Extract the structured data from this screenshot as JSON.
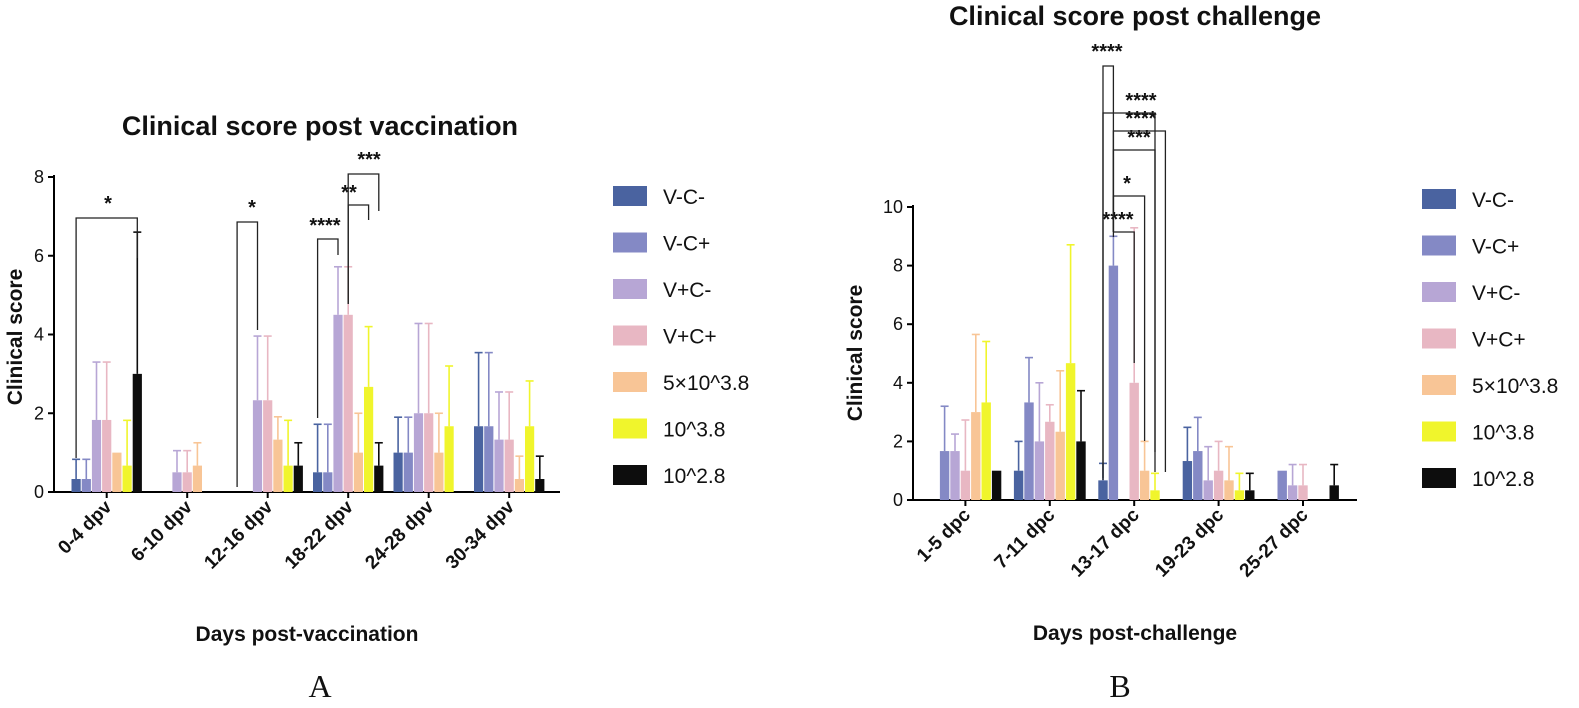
{
  "panels": [
    "A",
    "B"
  ],
  "chart_data": [
    {
      "type": "bar",
      "panel": "A",
      "title": "Clinical score post vaccination",
      "xlabel": "Days post-vaccination",
      "ylabel": "Clinical score",
      "ylim": [
        0,
        8
      ],
      "yticks": [
        0,
        2,
        4,
        6,
        8
      ],
      "legend_position": "right",
      "categories": [
        "0-4 dpv",
        "6-10 dpv",
        "12-16 dpv",
        "18-22 dpv",
        "24-28 dpv",
        "30-34 dpv"
      ],
      "series": [
        {
          "name": "V-C-",
          "color": "#4a63a0",
          "values": [
            0.33,
            0,
            0,
            0.5,
            1.0,
            1.67
          ],
          "errors": [
            0.5,
            0,
            0,
            1.22,
            0.9,
            1.87
          ]
        },
        {
          "name": "V-C+",
          "color": "#8489c5",
          "values": [
            0.33,
            0,
            0,
            0.5,
            1.0,
            1.67
          ],
          "errors": [
            0.5,
            0,
            0,
            1.22,
            0.9,
            1.87
          ]
        },
        {
          "name": "V+C-",
          "color": "#b7a6d5",
          "values": [
            1.83,
            0.5,
            2.33,
            4.5,
            2.0,
            1.33
          ],
          "errors": [
            1.47,
            0.55,
            1.63,
            1.22,
            2.28,
            1.21
          ]
        },
        {
          "name": "V+C+",
          "color": "#e8b7c3",
          "values": [
            1.83,
            0.5,
            2.33,
            4.5,
            2.0,
            1.33
          ],
          "errors": [
            1.47,
            0.55,
            1.63,
            1.22,
            2.28,
            1.21
          ]
        },
        {
          "name": "5×10^3.8",
          "color": "#f8c596",
          "values": [
            1.0,
            0.67,
            1.33,
            1.0,
            1.0,
            0.33
          ],
          "errors": [
            0,
            0.58,
            0.58,
            1.0,
            1.0,
            0.58
          ]
        },
        {
          "name": "10^3.8",
          "color": "#f0f52c",
          "values": [
            0.67,
            0,
            0.67,
            2.67,
            1.67,
            1.67
          ],
          "errors": [
            1.15,
            0,
            1.15,
            1.53,
            1.53,
            1.15
          ]
        },
        {
          "name": "10^2.8",
          "color": "#0d0d0d",
          "values": [
            3.0,
            0,
            0.67,
            0.67,
            0,
            0.33
          ],
          "errors": [
            3.6,
            0,
            0.58,
            0.58,
            0,
            0.58
          ]
        }
      ],
      "annotations": [
        {
          "label": "*",
          "category": "0-4 dpv",
          "from": "V-C-",
          "to": "10^2.8"
        },
        {
          "label": "*",
          "category": "12-16 dpv",
          "from": "V-C-",
          "to": "V+C-"
        },
        {
          "label": "****",
          "category": "18-22 dpv",
          "from": "V-C-",
          "to": "V+C-"
        },
        {
          "label": "**",
          "category": "18-22 dpv",
          "from": "V+C+",
          "to": "10^3.8"
        },
        {
          "label": "***",
          "category": "18-22 dpv",
          "from": "V+C+",
          "to": "10^2.8"
        }
      ]
    },
    {
      "type": "bar",
      "panel": "B",
      "title": "Clinical score post challenge",
      "xlabel": "Days post-challenge",
      "ylabel": "Clinical score",
      "ylim": [
        0,
        10
      ],
      "yticks": [
        0,
        2,
        4,
        6,
        8,
        10
      ],
      "legend_position": "right",
      "categories": [
        "1-5 dpc",
        "7-11 dpc",
        "13-17 dpc",
        "19-23 dpc",
        "25-27 dpc"
      ],
      "series": [
        {
          "name": "V-C-",
          "color": "#4a63a0",
          "values": [
            0,
            1.0,
            0.67,
            1.33,
            0
          ],
          "errors": [
            0,
            1.0,
            0.58,
            1.15,
            0
          ]
        },
        {
          "name": "V-C+",
          "color": "#8489c5",
          "values": [
            1.67,
            3.33,
            8.0,
            1.67,
            1.0
          ],
          "errors": [
            1.53,
            1.53,
            1.0,
            1.15,
            0
          ]
        },
        {
          "name": "V+C-",
          "color": "#b7a6d5",
          "values": [
            1.67,
            2.0,
            0,
            0.67,
            0.5
          ],
          "errors": [
            0.58,
            2.0,
            0,
            1.15,
            0.71
          ]
        },
        {
          "name": "V+C+",
          "color": "#e8b7c3",
          "values": [
            1.0,
            2.67,
            4.0,
            1.0,
            0.5
          ],
          "errors": [
            1.73,
            0.58,
            5.29,
            1.0,
            0.71
          ]
        },
        {
          "name": "5×10^3.8",
          "color": "#f8c596",
          "values": [
            3.0,
            2.33,
            1.0,
            0.67,
            0
          ],
          "errors": [
            2.65,
            2.08,
            1.0,
            1.15,
            0
          ]
        },
        {
          "name": "10^3.8",
          "color": "#f0f52c",
          "values": [
            3.33,
            4.67,
            0.33,
            0.33,
            0
          ],
          "errors": [
            2.08,
            4.04,
            0.58,
            0.58,
            0
          ]
        },
        {
          "name": "10^2.8",
          "color": "#0d0d0d",
          "values": [
            1.0,
            2.0,
            0,
            0.33,
            0.5
          ],
          "errors": [
            0,
            1.73,
            0,
            0.58,
            0.71
          ]
        }
      ],
      "annotations": [
        {
          "label": "****",
          "category": "13-17 dpc",
          "from": "V-C-",
          "to": "V-C+"
        },
        {
          "label": "****",
          "category": "13-17 dpc",
          "from": "V-C+",
          "to": "V+C+"
        },
        {
          "label": "*",
          "category": "13-17 dpc",
          "from": "V-C+",
          "to": "5×10^3.8"
        },
        {
          "label": "***",
          "category": "13-17 dpc",
          "from": "V-C+",
          "to": "10^3.8"
        },
        {
          "label": "****",
          "category": "13-17 dpc",
          "from": "V-C+",
          "to": "10^2.8"
        },
        {
          "label": "****",
          "category": "13-17 dpc",
          "from": "V-C-",
          "to": "10^3.8"
        }
      ]
    }
  ]
}
